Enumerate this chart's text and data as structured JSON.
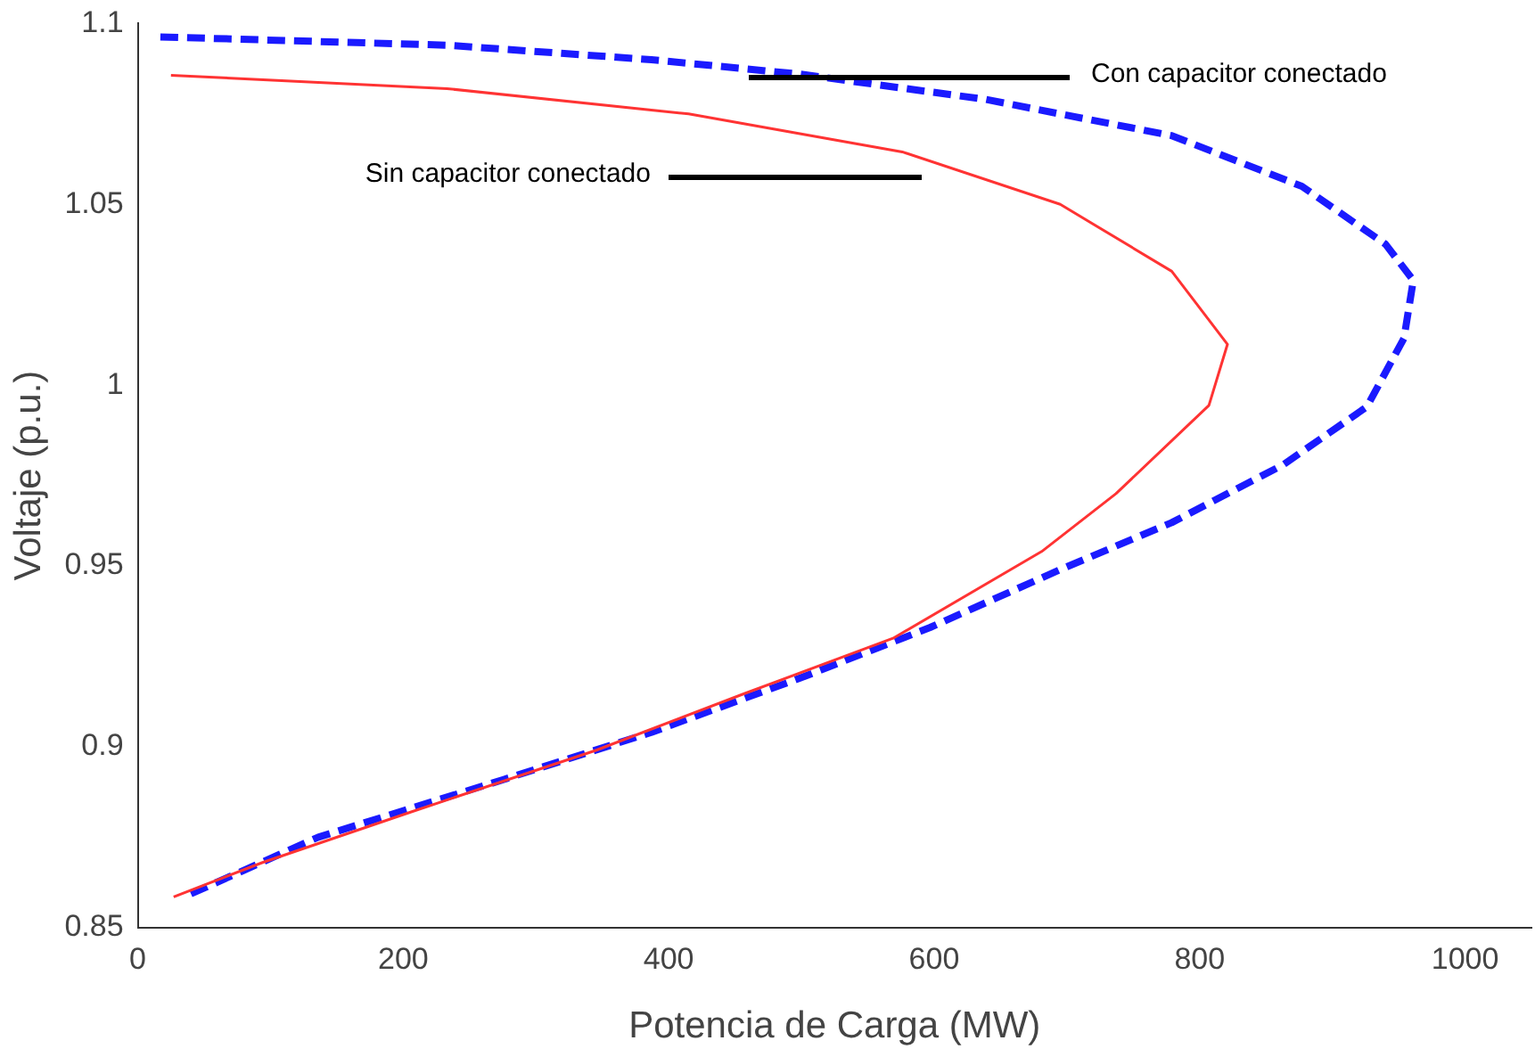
{
  "chart_data": {
    "type": "line",
    "xlabel": "Potencia de Carga (MW)",
    "ylabel": "Voltaje (p.u.)",
    "xlim": [
      0,
      1050
    ],
    "ylim": [
      0.85,
      1.1
    ],
    "xticks": [
      0,
      200,
      400,
      600,
      800,
      1000
    ],
    "yticks": [
      0.85,
      0.9,
      0.95,
      1,
      1.05,
      1.1
    ],
    "grid": false,
    "legend": false,
    "marker": "none",
    "series": [
      {
        "color": "#ff3333",
        "line_style": "solid",
        "x": [
          25,
          233,
          415,
          576,
          695,
          779,
          821,
          807,
          737,
          681,
          569,
          457,
          345,
          206,
          94,
          27
        ],
        "values": [
          1.0857,
          1.082,
          1.075,
          1.0645,
          1.05,
          1.0315,
          1.0113,
          0.9944,
          0.97,
          0.954,
          0.93,
          0.9147,
          0.899,
          0.882,
          0.868,
          0.8585
        ]
      },
      {
        "color": "#1a1aff",
        "line_style": "dashed",
        "x": [
          17,
          233,
          387,
          499,
          639,
          779,
          877,
          940,
          961,
          954,
          926,
          863,
          779,
          695,
          597,
          499,
          387,
          276,
          136,
          38
        ],
        "values": [
          1.0963,
          1.094,
          1.09,
          1.086,
          1.079,
          1.069,
          1.055,
          1.039,
          1.029,
          1.013,
          0.994,
          0.978,
          0.962,
          0.949,
          0.933,
          0.919,
          0.904,
          0.891,
          0.875,
          0.859
        ]
      }
    ],
    "annotations": [
      "Con capacitor conectado",
      "Sin capacitor conectado"
    ]
  }
}
